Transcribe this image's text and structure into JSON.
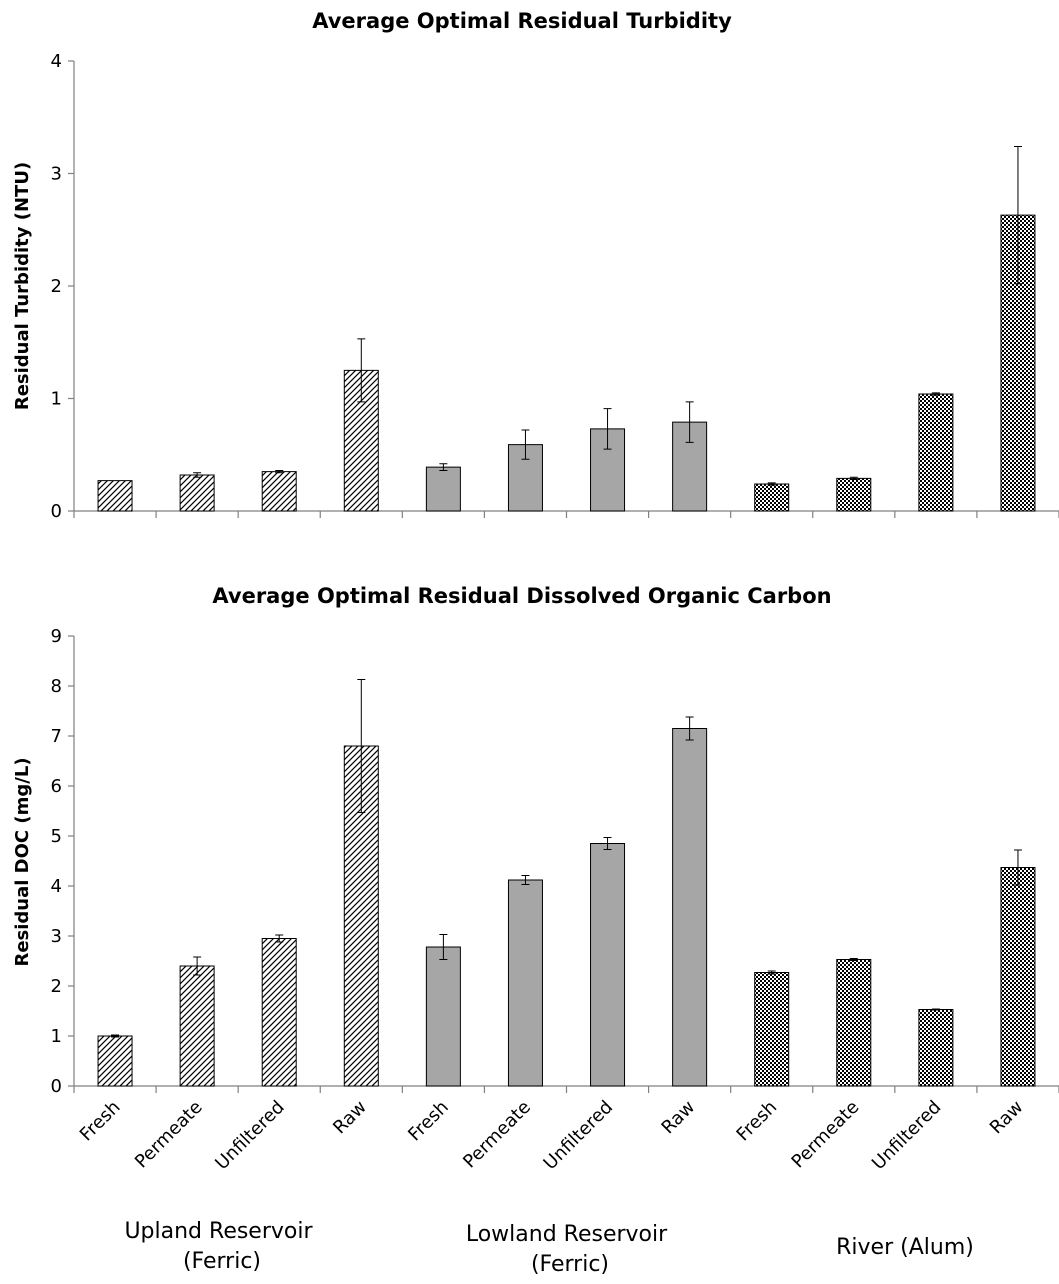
{
  "chart_data": [
    {
      "type": "bar",
      "title": "Average Optimal Residual Turbidity",
      "xlabel": "",
      "ylabel": "Residual Turbidity (NTU)",
      "ylim": [
        0,
        4
      ],
      "yticks": [
        0,
        1,
        2,
        3,
        4
      ],
      "grid": false,
      "categories": [
        "Fresh",
        "Permeate",
        "Unfiltered",
        "Raw",
        "Fresh",
        "Permeate",
        "Unfiltered",
        "Raw",
        "Fresh",
        "Permeate",
        "Unfiltered",
        "Raw"
      ],
      "values": [
        0.27,
        0.32,
        0.35,
        1.25,
        0.39,
        0.59,
        0.73,
        0.79,
        0.24,
        0.29,
        1.04,
        2.63
      ],
      "errors": [
        0.0,
        0.02,
        0.01,
        0.28,
        0.03,
        0.13,
        0.18,
        0.18,
        0.01,
        0.01,
        0.01,
        0.61
      ],
      "patterns": [
        "hatch",
        "hatch",
        "hatch",
        "hatch",
        "gray",
        "gray",
        "gray",
        "gray",
        "checker",
        "checker",
        "checker",
        "checker"
      ],
      "show_category_labels": false
    },
    {
      "type": "bar",
      "title": "Average Optimal Residual Dissolved Organic Carbon",
      "xlabel": "",
      "ylabel": "Residual DOC (mg/L)",
      "ylim": [
        0,
        9
      ],
      "yticks": [
        0,
        1,
        2,
        3,
        4,
        5,
        6,
        7,
        8,
        9
      ],
      "grid": false,
      "categories": [
        "Fresh",
        "Permeate",
        "Unfiltered",
        "Raw",
        "Fresh",
        "Permeate",
        "Unfiltered",
        "Raw",
        "Fresh",
        "Permeate",
        "Unfiltered",
        "Raw"
      ],
      "values": [
        1.0,
        2.4,
        2.95,
        6.8,
        2.78,
        4.12,
        4.85,
        7.15,
        2.27,
        2.53,
        1.53,
        4.37
      ],
      "errors": [
        0.02,
        0.18,
        0.07,
        1.33,
        0.25,
        0.09,
        0.12,
        0.23,
        0.03,
        0.02,
        0.01,
        0.35
      ],
      "patterns": [
        "hatch",
        "hatch",
        "hatch",
        "hatch",
        "gray",
        "gray",
        "gray",
        "gray",
        "checker",
        "checker",
        "checker",
        "checker"
      ],
      "show_category_labels": true
    }
  ],
  "groups": [
    {
      "lines": [
        "Upland Reservoir",
        "(Ferric)"
      ]
    },
    {
      "lines": [
        "Lowland Reservoir",
        "(Ferric)"
      ]
    },
    {
      "lines": [
        "River (Alum)"
      ]
    }
  ],
  "colors": {
    "gray_fill": "#a6a6a6",
    "bar_stroke": "#000000",
    "axis": "#808080",
    "hatch_bg": "#ffffff",
    "hatch_line": "#000000"
  }
}
